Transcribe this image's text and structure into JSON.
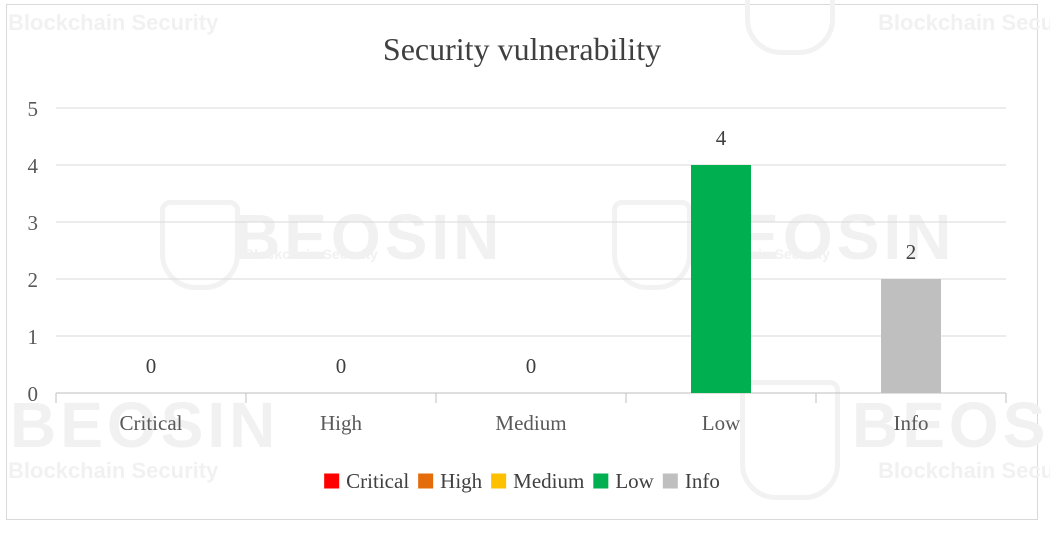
{
  "watermark": {
    "brand": "BEOSIN",
    "tagline": "Blockchain Security"
  },
  "legend": {
    "position": "bottom"
  },
  "chart_data": {
    "type": "bar",
    "title": "Security vulnerability",
    "xlabel": "",
    "ylabel": "",
    "categories": [
      "Critical",
      "High",
      "Medium",
      "Low",
      "Info"
    ],
    "values": [
      0,
      0,
      0,
      4,
      2
    ],
    "data_labels": [
      "0",
      "0",
      "0",
      "4",
      "2"
    ],
    "colors": [
      "#ff0000",
      "#e46c0a",
      "#ffc000",
      "#00b050",
      "#bfbfbf"
    ],
    "ylim": [
      0,
      5
    ],
    "yticks": [
      "0",
      "1",
      "2",
      "3",
      "4",
      "5"
    ],
    "grid": true
  }
}
